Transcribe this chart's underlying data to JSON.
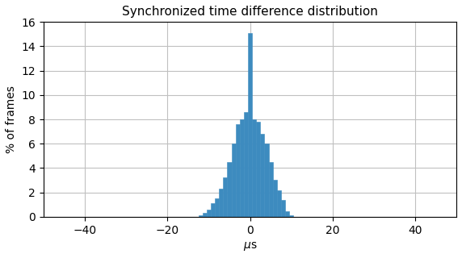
{
  "title": "Synchronized time difference distribution",
  "xlabel": "$\\mu$s",
  "ylabel": "% of frames",
  "xlim": [
    -50,
    50
  ],
  "ylim": [
    0,
    16
  ],
  "yticks": [
    0,
    2,
    4,
    6,
    8,
    10,
    12,
    14,
    16
  ],
  "xticks": [
    -40,
    -20,
    0,
    20,
    40
  ],
  "bar_color": "#3d8bbf",
  "bar_edgecolor": "#3d8bbf",
  "grid_color": "#c0c0c0",
  "background_color": "#ffffff",
  "bin_centers": [
    -12,
    -11,
    -10,
    -9,
    -8,
    -7,
    -6,
    -5,
    -4,
    -3,
    -2,
    -1,
    0,
    1,
    2,
    3,
    4,
    5,
    6,
    7,
    8,
    9,
    10
  ],
  "bin_heights": [
    0.1,
    0.3,
    0.6,
    1.1,
    1.5,
    2.3,
    3.2,
    4.5,
    6.0,
    7.6,
    8.0,
    8.6,
    15.1,
    8.0,
    7.8,
    6.8,
    6.0,
    4.5,
    3.0,
    2.2,
    1.4,
    0.45,
    0.1
  ],
  "bin_width": 1.0,
  "figsize": [
    5.72,
    3.2
  ],
  "dpi": 100,
  "title_fontsize": 11,
  "axis_fontsize": 10,
  "tick_fontsize": 10
}
